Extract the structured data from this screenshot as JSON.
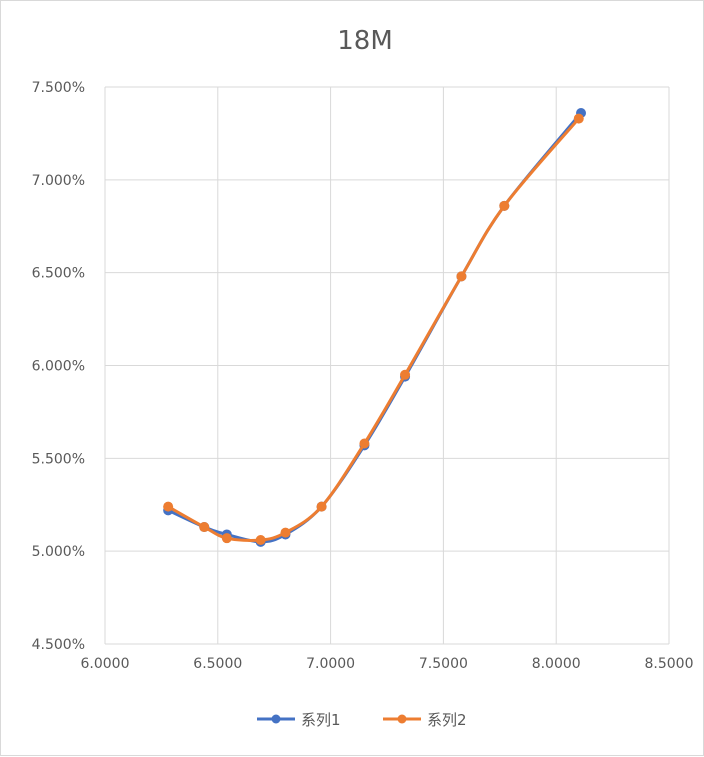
{
  "chart_data": {
    "type": "line",
    "title": "18M",
    "xlabel": "",
    "ylabel": "",
    "xlim": [
      6.0,
      8.5
    ],
    "ylim": [
      4.5,
      7.5
    ],
    "x_ticks": [
      6.0,
      6.5,
      7.0,
      7.5,
      8.0,
      8.5
    ],
    "x_tick_labels": [
      "6.0000",
      "6.5000",
      "7.0000",
      "7.5000",
      "8.0000",
      "8.5000"
    ],
    "y_ticks": [
      4.5,
      5.0,
      5.5,
      6.0,
      6.5,
      7.0,
      7.5
    ],
    "y_tick_labels": [
      "4.500%",
      "5.000%",
      "5.500%",
      "6.000%",
      "6.500%",
      "7.000%",
      "7.500%"
    ],
    "grid": true,
    "legend_position": "bottom",
    "smooth": true,
    "series": [
      {
        "name": "系列1",
        "color": "#4472c4",
        "x": [
          6.28,
          6.44,
          6.54,
          6.69,
          6.8,
          6.96,
          7.15,
          7.33,
          7.58,
          7.77,
          8.11
        ],
        "y": [
          5.22,
          5.13,
          5.09,
          5.05,
          5.09,
          5.24,
          5.57,
          5.94,
          6.48,
          6.86,
          7.36
        ]
      },
      {
        "name": "系列2",
        "color": "#ed7d31",
        "x": [
          6.28,
          6.44,
          6.54,
          6.69,
          6.8,
          6.96,
          7.15,
          7.33,
          7.58,
          7.77,
          8.1
        ],
        "y": [
          5.24,
          5.13,
          5.07,
          5.06,
          5.1,
          5.24,
          5.58,
          5.95,
          6.48,
          6.86,
          7.33
        ]
      }
    ]
  }
}
